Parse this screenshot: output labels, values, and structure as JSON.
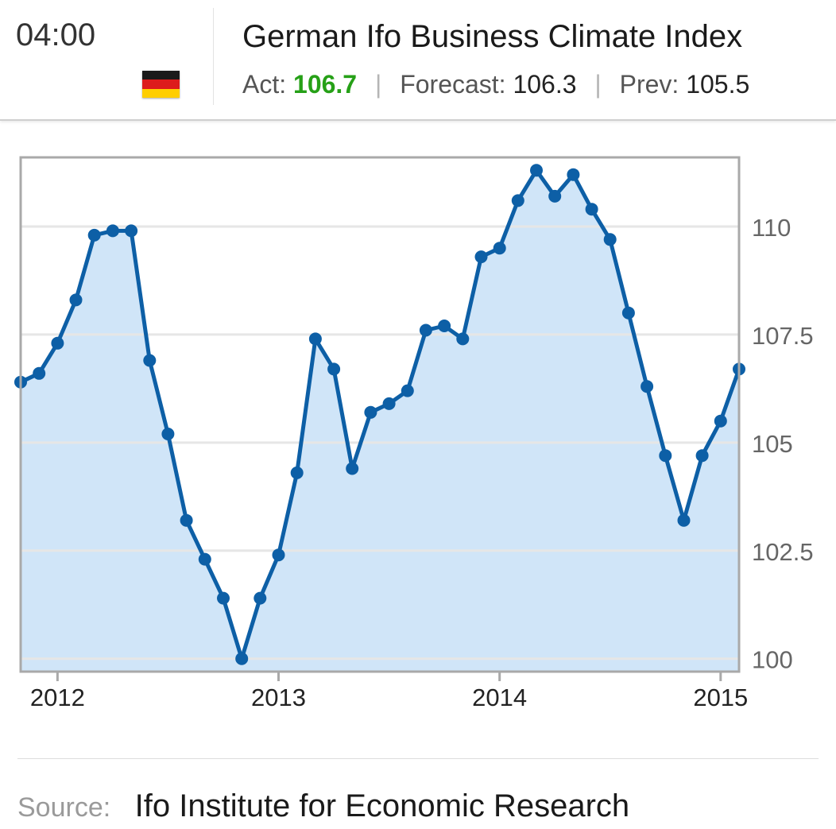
{
  "header": {
    "time": "04:00",
    "title": "German Ifo Business Climate Index",
    "act_label": "Act:",
    "act_value": "106.7",
    "forecast_label": "Forecast:",
    "forecast_value": "106.3",
    "prev_label": "Prev:",
    "prev_value": "105.5",
    "separator": "|",
    "flag_icon": "germany-flag-icon",
    "flag_colors": [
      "#1a1a1a",
      "#dd1c1c",
      "#ffce00"
    ]
  },
  "colors": {
    "line": "#0d5fa6",
    "fill": "#d0e5f8",
    "act_value": "#26a017"
  },
  "chart_data": {
    "type": "area",
    "title": "",
    "xlabel": "",
    "ylabel": "",
    "x_tick_labels": [
      "2012",
      "2013",
      "2014",
      "2015"
    ],
    "y_tick_labels": [
      "100",
      "102.5",
      "105",
      "107.5",
      "110"
    ],
    "ylim": [
      99.7,
      111.6
    ],
    "grid": true,
    "y_axis_side": "right",
    "series": [
      {
        "x": [
          "2011-11",
          "2011-12",
          "2012-01",
          "2012-02",
          "2012-03",
          "2012-04",
          "2012-05",
          "2012-06",
          "2012-07",
          "2012-08",
          "2012-09",
          "2012-10",
          "2012-11",
          "2012-12",
          "2013-01",
          "2013-02",
          "2013-03",
          "2013-04",
          "2013-05",
          "2013-06",
          "2013-07",
          "2013-08",
          "2013-09",
          "2013-10",
          "2013-11",
          "2013-12",
          "2014-01",
          "2014-02",
          "2014-03",
          "2014-04",
          "2014-05",
          "2014-06",
          "2014-07",
          "2014-08",
          "2014-09",
          "2014-10",
          "2014-11",
          "2014-12",
          "2015-01",
          "2015-02"
        ],
        "values": [
          106.4,
          106.6,
          107.3,
          108.3,
          109.8,
          109.9,
          109.9,
          106.9,
          105.2,
          103.2,
          102.3,
          101.4,
          100.0,
          101.4,
          102.4,
          104.3,
          107.4,
          106.7,
          104.4,
          105.7,
          105.9,
          106.2,
          107.6,
          107.7,
          107.4,
          109.3,
          109.5,
          110.6,
          111.3,
          110.7,
          111.2,
          110.4,
          109.7,
          108.0,
          106.3,
          104.7,
          103.2,
          104.7,
          105.5,
          106.7
        ]
      }
    ]
  },
  "footer": {
    "source_label": "Source:",
    "source_value": "Ifo Institute for Economic Research"
  }
}
